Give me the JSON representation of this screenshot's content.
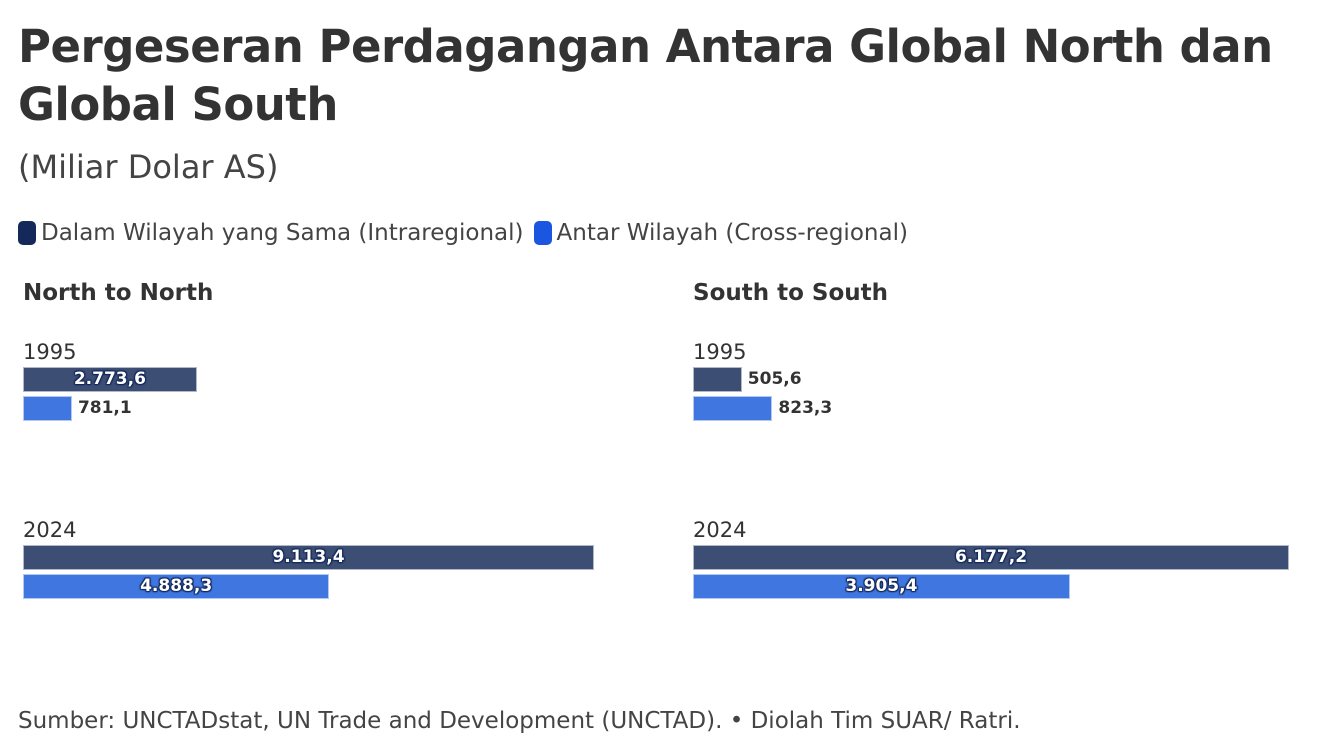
{
  "title": "Pergeseran Perdagangan Antara Global North dan Global South",
  "subtitle": "(Miliar Dolar AS)",
  "source": "Sumber: UNCTADstat, UN Trade and Development (UNCTAD). • Diolah Tim SUAR/ Ratri.",
  "colors": {
    "intraregional_legend": "#14295a",
    "crossregional_legend": "#1a56e0",
    "intraregional_bar": "#3c4e74",
    "crossregional_bar": "#3f76e0"
  },
  "chart_data": {
    "type": "bar",
    "orientation": "horizontal",
    "legend": [
      "Dalam Wilayah yang Sama (Intraregional)",
      "Antar Wilayah (Cross-regional)"
    ],
    "legend_placement": "top-left",
    "grid": false,
    "panels": [
      {
        "title": "North to North",
        "categories": [
          "1995",
          "2024"
        ],
        "series": [
          {
            "name": "Dalam Wilayah yang Sama (Intraregional)",
            "values": [
              2773.6,
              9113.4
            ],
            "labels": [
              "2.773,6",
              "9.113,4"
            ]
          },
          {
            "name": "Antar Wilayah (Cross-regional)",
            "values": [
              781.1,
              4888.3
            ],
            "labels": [
              "781,1",
              "4.888,3"
            ]
          }
        ]
      },
      {
        "title": "South to South",
        "categories": [
          "1995",
          "2024"
        ],
        "series": [
          {
            "name": "Dalam Wilayah yang Sama (Intraregional)",
            "values": [
              505.6,
              6177.2
            ],
            "labels": [
              "505,6",
              "6.177,2"
            ]
          },
          {
            "name": "Antar Wilayah (Cross-regional)",
            "values": [
              823.3,
              3905.4
            ],
            "labels": [
              "823,3",
              "3.905,4"
            ]
          }
        ]
      }
    ]
  }
}
